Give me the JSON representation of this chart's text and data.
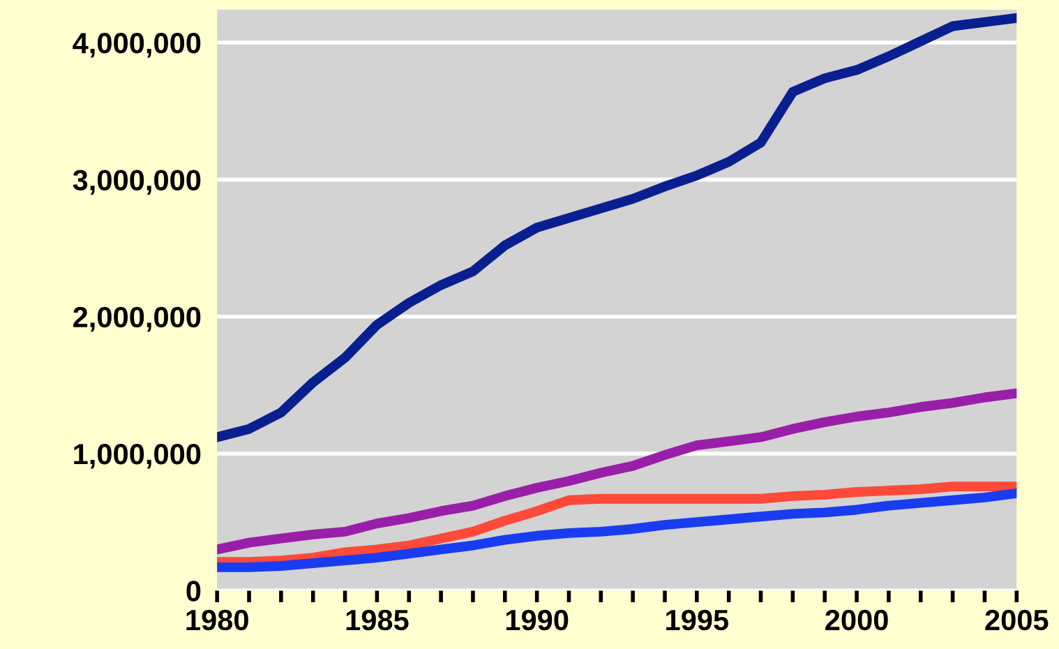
{
  "chart_data": {
    "type": "line",
    "x": [
      1980,
      1981,
      1982,
      1983,
      1984,
      1985,
      1986,
      1987,
      1988,
      1989,
      1990,
      1991,
      1992,
      1993,
      1994,
      1995,
      1996,
      1997,
      1998,
      1999,
      2000,
      2001,
      2002,
      2003,
      2004,
      2005
    ],
    "series": [
      {
        "color": "#0a1f8f",
        "values": [
          1120000,
          1180000,
          1300000,
          1520000,
          1700000,
          1940000,
          2100000,
          2230000,
          2330000,
          2520000,
          2650000,
          2720000,
          2790000,
          2860000,
          2950000,
          3030000,
          3130000,
          3270000,
          3640000,
          3740000,
          3800000,
          3900000,
          4010000,
          4120000,
          4150000,
          4180000
        ]
      },
      {
        "color": "#9a1fa8",
        "values": [
          300000,
          350000,
          380000,
          410000,
          430000,
          490000,
          530000,
          580000,
          620000,
          690000,
          750000,
          800000,
          860000,
          910000,
          990000,
          1060000,
          1090000,
          1120000,
          1180000,
          1230000,
          1270000,
          1300000,
          1340000,
          1370000,
          1410000,
          1440000
        ]
      },
      {
        "color": "#ff4a3a",
        "values": [
          210000,
          210000,
          220000,
          240000,
          280000,
          300000,
          330000,
          380000,
          430000,
          510000,
          580000,
          660000,
          670000,
          670000,
          670000,
          670000,
          670000,
          670000,
          690000,
          700000,
          720000,
          730000,
          740000,
          760000,
          760000,
          760000
        ]
      },
      {
        "color": "#1a3cf0",
        "values": [
          170000,
          170000,
          180000,
          200000,
          220000,
          240000,
          270000,
          300000,
          330000,
          370000,
          400000,
          420000,
          430000,
          450000,
          480000,
          500000,
          520000,
          540000,
          560000,
          570000,
          590000,
          620000,
          640000,
          660000,
          680000,
          710000
        ]
      }
    ],
    "xlim": [
      1980,
      2005
    ],
    "xticks": [
      1980,
      {
        "value": 1981,
        "label": null
      },
      {
        "value": 1982,
        "label": null
      },
      {
        "value": 1983,
        "label": null
      },
      {
        "value": 1984,
        "label": null
      },
      1985,
      {
        "value": 1986,
        "label": null
      },
      {
        "value": 1987,
        "label": null
      },
      {
        "value": 1988,
        "label": null
      },
      {
        "value": 1989,
        "label": null
      },
      1990,
      {
        "value": 1991,
        "label": null
      },
      {
        "value": 1992,
        "label": null
      },
      {
        "value": 1993,
        "label": null
      },
      {
        "value": 1994,
        "label": null
      },
      1995,
      {
        "value": 1996,
        "label": null
      },
      {
        "value": 1997,
        "label": null
      },
      {
        "value": 1998,
        "label": null
      },
      {
        "value": 1999,
        "label": null
      },
      2000,
      {
        "value": 2001,
        "label": null
      },
      {
        "value": 2002,
        "label": null
      },
      {
        "value": 2003,
        "label": null
      },
      {
        "value": 2004,
        "label": null
      },
      2005
    ],
    "ylim": [
      0,
      4240000
    ],
    "yticks": [
      {
        "value": 0,
        "label": "0"
      },
      {
        "value": 1000000,
        "label": "1,000,000"
      },
      {
        "value": 2000000,
        "label": "2,000,000"
      },
      {
        "value": 3000000,
        "label": "3,000,000"
      },
      {
        "value": 4000000,
        "label": "4,000,000"
      }
    ],
    "grid": "y",
    "marker": "none",
    "line_style": "solid"
  }
}
